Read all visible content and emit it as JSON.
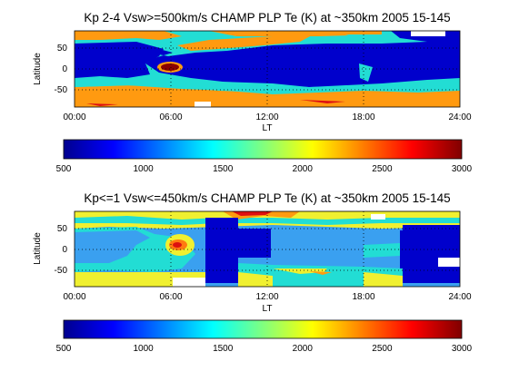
{
  "chart_data": [
    {
      "type": "heatmap",
      "title": "Kp 2-4 Vsw>=500km/s CHAMP PLP Te (K) at ~350km 2005 15-145",
      "xlabel": "LT",
      "ylabel": "Latitude",
      "xlim": [
        0,
        24
      ],
      "ylim": [
        -90,
        90
      ],
      "x_ticks": [
        "00:00",
        "06:00",
        "12:00",
        "18:00",
        "24:00"
      ],
      "y_ticks": [
        "50",
        "0",
        "-50"
      ],
      "grid": true,
      "colorbar": {
        "min": 500,
        "max": 3000,
        "ticks": [
          "500",
          "1000",
          "1500",
          "2000",
          "2500",
          "3000"
        ]
      },
      "approx_values_by_lat_band": [
        {
          "lat": [
            55,
            90
          ],
          "te_k": "1500-2000 (orange/cyan mix), white gaps near 22-23 LT"
        },
        {
          "lat": [
            35,
            55
          ],
          "te_k": "~1500, with orange patches 9-14 LT"
        },
        {
          "lat": [
            -35,
            35
          ],
          "te_k": "~700 (deep blue), cyan intrusions 1-6 LT and 17-18 LT; hot spot ~2800 near 05:30-07:00 LT, lat 0"
        },
        {
          "lat": [
            -55,
            -35
          ],
          "te_k": "~1500"
        },
        {
          "lat": [
            -90,
            -55
          ],
          "te_k": "~1900 (orange), red streaks 14-17 LT"
        }
      ]
    },
    {
      "type": "heatmap",
      "title": "Kp<=1 Vsw<=450km/s CHAMP PLP Te (K) at ~350km 2005 15-145",
      "xlabel": "LT",
      "ylabel": "Latitude",
      "xlim": [
        0,
        24
      ],
      "ylim": [
        -90,
        90
      ],
      "x_ticks": [
        "00:00",
        "06:00",
        "12:00",
        "18:00",
        "24:00"
      ],
      "y_ticks": [
        "50",
        "0",
        "-50"
      ],
      "grid": true,
      "colorbar": {
        "min": 500,
        "max": 3000,
        "ticks": [
          "500",
          "1000",
          "1500",
          "2000",
          "2500",
          "3000"
        ]
      },
      "approx_values_by_lat_band": [
        {
          "lat": [
            60,
            90
          ],
          "te_k": "1700-2100 (yellow/cyan), orange/red near 11-15 LT"
        },
        {
          "lat": [
            -35,
            35
          ],
          "te_k": "~1100 (light blue), yellow-orange warm area ~2100-2500 near 06:00 LT, lat 0"
        },
        {
          "lat": [
            -55,
            -35
          ],
          "te_k": "~1500 with yellow and orange patches"
        },
        {
          "lat": [
            -90,
            -55
          ],
          "te_k": "~1900 (yellow/orange)"
        }
      ],
      "data_gaps_local_time": [
        [
          9.0,
          12.0
        ],
        [
          20.5,
          23.0
        ]
      ]
    }
  ]
}
